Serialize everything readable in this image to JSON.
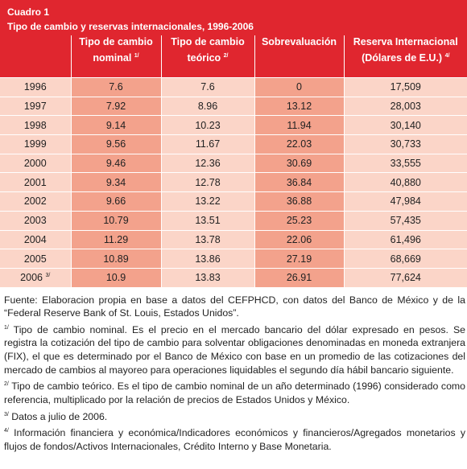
{
  "header": {
    "label": "Cuadro 1",
    "title": "Tipo de cambio y reservas internacionales, 1996-2006"
  },
  "table": {
    "columns": [
      {
        "lines": [
          "",
          ""
        ]
      },
      {
        "lines": [
          "Tipo de cambio",
          "nominal"
        ],
        "note": "1/"
      },
      {
        "lines": [
          "Tipo de cambio",
          "teórico"
        ],
        "note": "2/"
      },
      {
        "lines": [
          "Sobrevaluación",
          ""
        ]
      },
      {
        "lines": [
          "Reserva Internacional",
          "(Dólares de E.U.)"
        ],
        "note": "4/"
      }
    ],
    "rows": [
      [
        {
          "text": "1996"
        },
        "7.6",
        "7.6",
        "0",
        "17,509"
      ],
      [
        {
          "text": "1997"
        },
        "7.92",
        "8.96",
        "13.12",
        "28,003"
      ],
      [
        {
          "text": "1998"
        },
        "9.14",
        "10.23",
        "11.94",
        "30,140"
      ],
      [
        {
          "text": "1999"
        },
        "9.56",
        "11.67",
        "22.03",
        "30,733"
      ],
      [
        {
          "text": "2000"
        },
        "9.46",
        "12.36",
        "30.69",
        "33,555"
      ],
      [
        {
          "text": "2001"
        },
        "9.34",
        "12.78",
        "36.84",
        "40,880"
      ],
      [
        {
          "text": "2002"
        },
        "9.66",
        "13.22",
        "36.88",
        "47,984"
      ],
      [
        {
          "text": "2003"
        },
        "10.79",
        "13.51",
        "25.23",
        "57,435"
      ],
      [
        {
          "text": "2004"
        },
        "11.29",
        "13.78",
        "22.06",
        "61,496"
      ],
      [
        {
          "text": "2005"
        },
        "10.89",
        "13.86",
        "27.19",
        "68,669"
      ],
      [
        {
          "text": "2006",
          "note": "3/"
        },
        "10.9",
        "13.83",
        "26.91",
        "77,624"
      ]
    ]
  },
  "notes": [
    {
      "text": "Fuente: Elaboracion propia en base a datos del CEFPHCD, con datos del Banco de México y de la “Federal Reserve Bank of St. Louis, Estados Unidos”."
    },
    {
      "mark": "1/",
      "text": "Tipo de cambio nominal. Es el precio en el mercado bancario del dólar expresado en pesos. Se registra la cotización del tipo de cambio para solventar obligaciones denominadas en moneda extranjera (FIX), el que es determinado por el Banco de México con base en un promedio de las cotizaciones del mercado de cambios al mayoreo para operaciones liquidables el segundo día hábil bancario siguiente."
    },
    {
      "mark": "2/",
      "text": "Tipo de cambio teórico. Es el tipo de cambio nominal de un año determinado (1996) considerado como referencia, multiplicado por la relación de precios de Estados Unidos y México."
    },
    {
      "mark": "3/",
      "text": "Datos a julio de 2006."
    },
    {
      "mark": "4/",
      "text": "Información financiera y económica/Indicadores económicos y financieros/Agregados monetarios y flujos de fondos/Activos Internacionales, Crédito Interno y Base Monetaria."
    }
  ]
}
